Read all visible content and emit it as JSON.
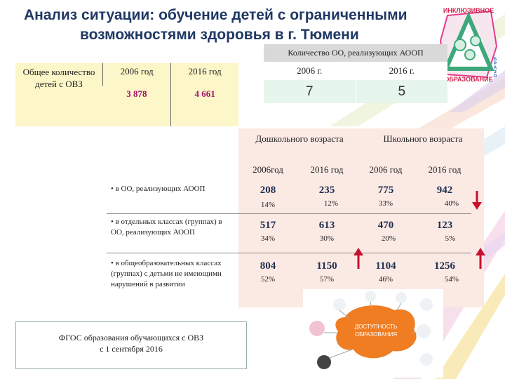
{
  "title": {
    "line1": "Анализ ситуации: обучение детей с ограниченными",
    "line2": "возможностями здоровья в  г. Тюмени"
  },
  "logo": {
    "text_top": "ИНКЛЮЗИВНОЕ",
    "text_bottom": "ОБРАЗОВАНИЕ",
    "letters": [
      "Б",
      "Р",
      "А",
      "З",
      "О"
    ]
  },
  "summary": {
    "label": "Общее количество детей с ОВЗ",
    "years": [
      "2006 год",
      "2016 год"
    ],
    "values": [
      "3 878",
      "4 661"
    ]
  },
  "aoop": {
    "caption": "Количество ОО, реализующих АООП",
    "years": [
      "2006 г.",
      "2016 г."
    ],
    "values": [
      "7",
      "5"
    ]
  },
  "main": {
    "groups": [
      "Дошкольного возраста",
      "Школьного возраста"
    ],
    "year_headers": [
      "2006год",
      "2016 год",
      "2006 год",
      "2016 год"
    ],
    "rows": [
      {
        "label": "• в ОО, реализующих АООП",
        "nums": [
          "208",
          "235",
          "775",
          "942"
        ],
        "pcts": [
          "14%",
          "12%",
          "33%",
          "40%"
        ]
      },
      {
        "label": "• в отдельных классах (группах) в ОО, реализующих АООП",
        "nums": [
          "517",
          "613",
          "470",
          "123"
        ],
        "pcts": [
          "34%",
          "30%",
          "20%",
          "5%"
        ]
      },
      {
        "label": "• в общеобразовательных классах (группах) с детьми не имеющими нарушений в развитии",
        "nums": [
          "804",
          "1150",
          "1104",
          "1256"
        ],
        "pcts": [
          "52%",
          "57%",
          "46%",
          "54%"
        ]
      }
    ]
  },
  "fgos": {
    "line1": "ФГОС образования обучающихся с ОВЗ",
    "line2": "с 1 сентября 2016"
  },
  "access_graphic": {
    "line1": "ДОСТУПНОСТЬ",
    "line2": "ОБРАЗОВАНИЯ"
  },
  "colors": {
    "title": "#1f3864",
    "arrow": "#c8102e",
    "summary_value": "#a0126a",
    "main_bg": "#fbe9e4"
  }
}
